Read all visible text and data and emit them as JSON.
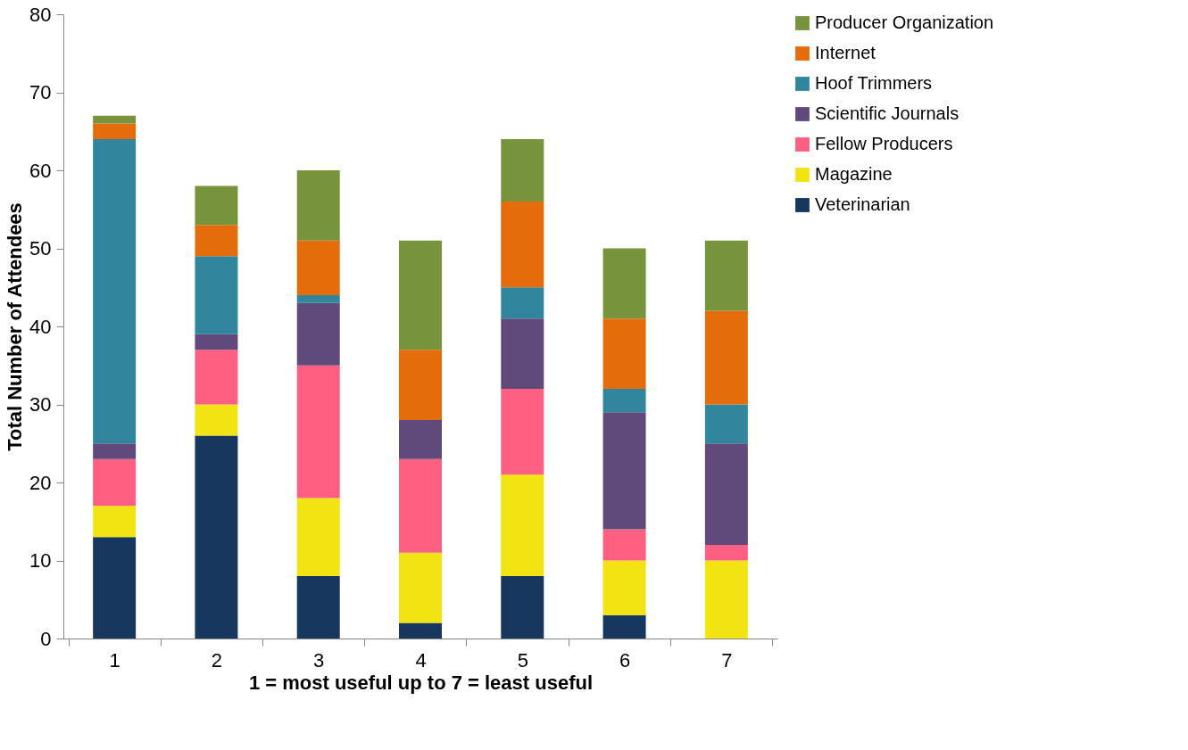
{
  "chart_data": {
    "type": "bar",
    "stacked": true,
    "xlabel": "1 = most useful up to 7 = least useful",
    "ylabel": "Total Number of Attendees",
    "categories": [
      "1",
      "2",
      "3",
      "4",
      "5",
      "6",
      "7"
    ],
    "series": [
      {
        "name": "Veterinarian",
        "color": "#17375e",
        "values": [
          13,
          26,
          8,
          2,
          8,
          3,
          0
        ]
      },
      {
        "name": "Magazine",
        "color": "#f2e313",
        "values": [
          4,
          4,
          10,
          9,
          13,
          7,
          10
        ]
      },
      {
        "name": "Fellow Producers",
        "color": "#ff5f81",
        "values": [
          6,
          7,
          17,
          12,
          11,
          4,
          2
        ]
      },
      {
        "name": "Scientific Journals",
        "color": "#604a7b",
        "values": [
          2,
          2,
          8,
          5,
          9,
          15,
          13
        ]
      },
      {
        "name": "Hoof Trimmers",
        "color": "#31859c",
        "values": [
          39,
          10,
          1,
          0,
          4,
          3,
          5
        ]
      },
      {
        "name": "Internet",
        "color": "#e46c0a",
        "values": [
          2,
          4,
          7,
          9,
          11,
          9,
          12
        ]
      },
      {
        "name": "Producer Organization",
        "color": "#77933c",
        "values": [
          1,
          5,
          9,
          14,
          8,
          9,
          9
        ]
      }
    ],
    "ylim": [
      0,
      80
    ],
    "yticks": [
      0,
      10,
      20,
      30,
      40,
      50,
      60,
      70,
      80
    ],
    "grid": false,
    "legend": "right"
  }
}
